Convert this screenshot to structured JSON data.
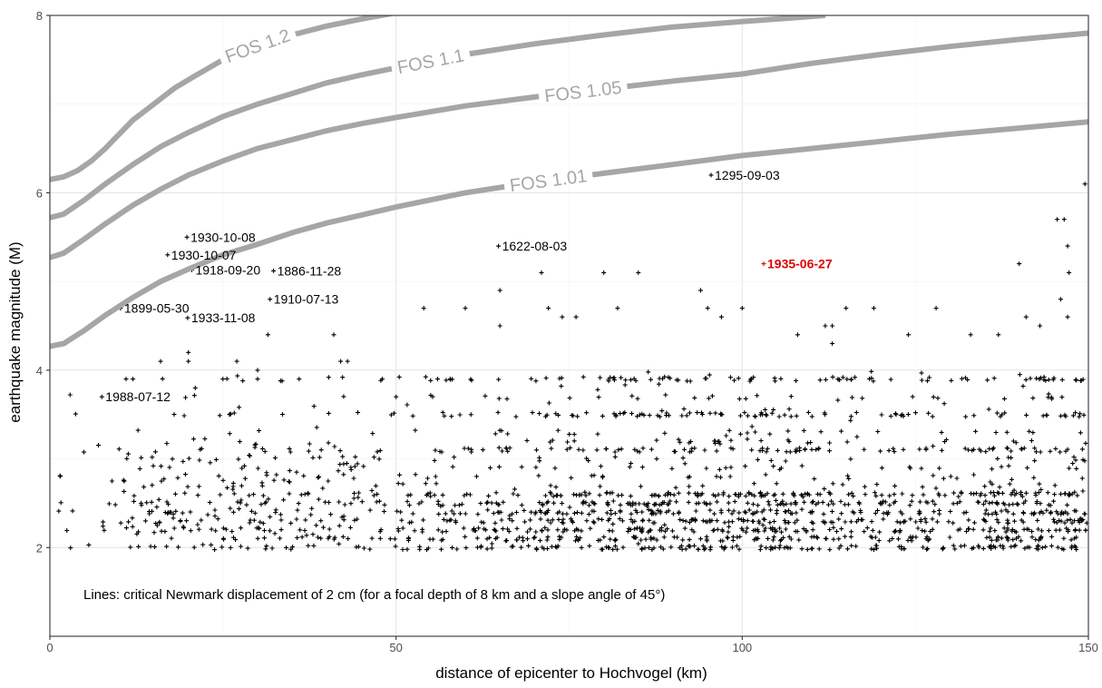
{
  "chart_data": {
    "type": "scatter",
    "xlabel": "distance of epicenter to Hochvogel (km)",
    "ylabel": "earthquake magnitude (M)",
    "xlim": [
      0,
      150
    ],
    "ylim": [
      1.0,
      8.0
    ],
    "x_ticks": [
      0,
      50,
      100,
      150
    ],
    "y_ticks": [
      2,
      4,
      6,
      8
    ],
    "grid": true,
    "note": "Lines: critical Newmark displacement of 2 cm (for a focal depth of 8 km and a slope angle of 45°)",
    "fos_lines": [
      {
        "label": "FOS 1.2",
        "label_at": 30,
        "color": "#a6a6a6",
        "points": [
          [
            0,
            6.15
          ],
          [
            2,
            6.18
          ],
          [
            4,
            6.25
          ],
          [
            6,
            6.36
          ],
          [
            8,
            6.5
          ],
          [
            10,
            6.66
          ],
          [
            12,
            6.82
          ],
          [
            15,
            7.0
          ],
          [
            18,
            7.18
          ],
          [
            21,
            7.32
          ],
          [
            25,
            7.5
          ],
          [
            30,
            7.66
          ],
          [
            35,
            7.78
          ],
          [
            40,
            7.88
          ],
          [
            45,
            7.96
          ],
          [
            50,
            8.03
          ],
          [
            60,
            8.16
          ],
          [
            70,
            8.28
          ]
        ]
      },
      {
        "label": "FOS 1.1",
        "label_at": 55,
        "color": "#a6a6a6",
        "points": [
          [
            0,
            5.72
          ],
          [
            2,
            5.76
          ],
          [
            5,
            5.92
          ],
          [
            8,
            6.1
          ],
          [
            12,
            6.32
          ],
          [
            16,
            6.52
          ],
          [
            20,
            6.68
          ],
          [
            25,
            6.86
          ],
          [
            30,
            7.0
          ],
          [
            35,
            7.12
          ],
          [
            40,
            7.24
          ],
          [
            45,
            7.33
          ],
          [
            50,
            7.41
          ],
          [
            60,
            7.56
          ],
          [
            70,
            7.68
          ],
          [
            80,
            7.78
          ],
          [
            90,
            7.87
          ],
          [
            100,
            7.93
          ],
          [
            112,
            8.0
          ]
        ]
      },
      {
        "label": "FOS 1.05",
        "label_at": 77,
        "color": "#a6a6a6",
        "points": [
          [
            0,
            5.27
          ],
          [
            2,
            5.32
          ],
          [
            5,
            5.48
          ],
          [
            8,
            5.65
          ],
          [
            12,
            5.86
          ],
          [
            16,
            6.04
          ],
          [
            20,
            6.2
          ],
          [
            25,
            6.36
          ],
          [
            30,
            6.5
          ],
          [
            35,
            6.6
          ],
          [
            40,
            6.7
          ],
          [
            45,
            6.78
          ],
          [
            50,
            6.85
          ],
          [
            60,
            6.98
          ],
          [
            70,
            7.08
          ],
          [
            80,
            7.17
          ],
          [
            90,
            7.26
          ],
          [
            100,
            7.34
          ],
          [
            110,
            7.46
          ],
          [
            120,
            7.56
          ],
          [
            130,
            7.65
          ],
          [
            140,
            7.73
          ],
          [
            150,
            7.8
          ]
        ]
      },
      {
        "label": "FOS 1.01",
        "label_at": 72,
        "color": "#a6a6a6",
        "points": [
          [
            0,
            4.27
          ],
          [
            2,
            4.3
          ],
          [
            5,
            4.45
          ],
          [
            8,
            4.62
          ],
          [
            12,
            4.82
          ],
          [
            16,
            5.0
          ],
          [
            20,
            5.14
          ],
          [
            25,
            5.3
          ],
          [
            30,
            5.42
          ],
          [
            35,
            5.55
          ],
          [
            40,
            5.66
          ],
          [
            45,
            5.75
          ],
          [
            50,
            5.84
          ],
          [
            60,
            6.0
          ],
          [
            70,
            6.12
          ],
          [
            80,
            6.22
          ],
          [
            90,
            6.32
          ],
          [
            100,
            6.42
          ],
          [
            110,
            6.5
          ],
          [
            120,
            6.58
          ],
          [
            130,
            6.66
          ],
          [
            140,
            6.73
          ],
          [
            150,
            6.8
          ]
        ]
      }
    ],
    "annotated_events": [
      {
        "label": "1295-09-03",
        "x": 95.5,
        "y": 6.2
      },
      {
        "label": "1622-08-03",
        "x": 64.8,
        "y": 5.4
      },
      {
        "label": "1930-10-08",
        "x": 19.8,
        "y": 5.5
      },
      {
        "label": "1930-10-07",
        "x": 17.0,
        "y": 5.3
      },
      {
        "label": "1918-09-20",
        "x": 20.5,
        "y": 5.13
      },
      {
        "label": "1886-11-28",
        "x": 32.3,
        "y": 5.12
      },
      {
        "label": "1910-07-13",
        "x": 31.8,
        "y": 4.8
      },
      {
        "label": "1899-05-30",
        "x": 10.2,
        "y": 4.7
      },
      {
        "label": "1933-11-08",
        "x": 19.9,
        "y": 4.59
      },
      {
        "label": "1988-07-12",
        "x": 7.5,
        "y": 3.7
      },
      {
        "label": "1935-06-27",
        "x": 103.1,
        "y": 5.2,
        "highlight": true
      }
    ],
    "highlight_color": "#e00000",
    "other_events_sample": [
      [
        149.5,
        6.1
      ],
      [
        145.5,
        5.7
      ],
      [
        146.5,
        5.7
      ],
      [
        147,
        5.4
      ],
      [
        147.2,
        5.1
      ],
      [
        140,
        5.2
      ],
      [
        80,
        5.1
      ],
      [
        85,
        5.1
      ],
      [
        71,
        5.1
      ],
      [
        72,
        4.7
      ],
      [
        74,
        4.6
      ],
      [
        76,
        4.6
      ],
      [
        65,
        4.9
      ],
      [
        65,
        4.5
      ],
      [
        60,
        4.7
      ],
      [
        54,
        4.7
      ],
      [
        82,
        4.7
      ],
      [
        94,
        4.9
      ],
      [
        95,
        4.7
      ],
      [
        97,
        4.6
      ],
      [
        100,
        4.7
      ],
      [
        108,
        4.4
      ],
      [
        112,
        4.5
      ],
      [
        113,
        4.5
      ],
      [
        113,
        4.3
      ],
      [
        115,
        4.7
      ],
      [
        119,
        4.7
      ],
      [
        124,
        4.4
      ],
      [
        128,
        4.7
      ],
      [
        133,
        4.4
      ],
      [
        137,
        4.4
      ],
      [
        141,
        4.6
      ],
      [
        143,
        4.5
      ],
      [
        146,
        4.8
      ],
      [
        147,
        4.6
      ],
      [
        31.5,
        4.4
      ],
      [
        41,
        4.4
      ],
      [
        42,
        4.1
      ],
      [
        43,
        4.1
      ],
      [
        36,
        3.9
      ],
      [
        30,
        4.0
      ],
      [
        27,
        4.1
      ],
      [
        25,
        3.9
      ],
      [
        11,
        3.9
      ],
      [
        12,
        3.9
      ],
      [
        16,
        4.1
      ],
      [
        20,
        4.2
      ],
      [
        20,
        4.1
      ],
      [
        21,
        3.8
      ],
      [
        30,
        3.9
      ],
      [
        48,
        3.9
      ],
      [
        50,
        3.7
      ],
      [
        56,
        3.9
      ]
    ]
  }
}
